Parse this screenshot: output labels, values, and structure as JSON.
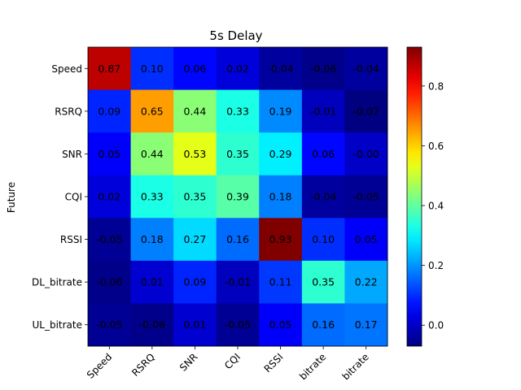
{
  "chart_data": {
    "type": "heatmap",
    "title": "5s Delay",
    "ylabel": "Future",
    "xlabel": "",
    "x_categories": [
      "Speed",
      "RSRQ",
      "SNR",
      "CQI",
      "RSSI",
      "bitrate",
      "bitrate"
    ],
    "y_categories": [
      "Speed",
      "RSRQ",
      "SNR",
      "CQI",
      "RSSI",
      "DL_bitrate",
      "UL_bitrate"
    ],
    "values": [
      [
        0.87,
        0.1,
        0.06,
        0.02,
        -0.04,
        -0.06,
        -0.04
      ],
      [
        0.09,
        0.65,
        0.44,
        0.33,
        0.19,
        -0.01,
        -0.07
      ],
      [
        0.05,
        0.44,
        0.53,
        0.35,
        0.29,
        0.06,
        -0.0
      ],
      [
        0.02,
        0.33,
        0.35,
        0.39,
        0.18,
        -0.04,
        -0.05
      ],
      [
        -0.05,
        0.18,
        0.27,
        0.16,
        0.93,
        0.1,
        0.05
      ],
      [
        -0.06,
        0.01,
        0.09,
        -0.01,
        0.11,
        0.35,
        0.22
      ],
      [
        -0.05,
        -0.06,
        0.01,
        -0.05,
        0.05,
        0.16,
        0.17
      ]
    ],
    "labels": [
      [
        "0.87",
        "0.10",
        "0.06",
        "0.02",
        "-0.04",
        "-0.06",
        "-0.04"
      ],
      [
        "0.09",
        "0.65",
        "0.44",
        "0.33",
        "0.19",
        "-0.01",
        "-0.07"
      ],
      [
        "0.05",
        "0.44",
        "0.53",
        "0.35",
        "0.29",
        "0.06",
        "-0.00"
      ],
      [
        "0.02",
        "0.33",
        "0.35",
        "0.39",
        "0.18",
        "-0.04",
        "-0.05"
      ],
      [
        "-0.05",
        "0.18",
        "0.27",
        "0.16",
        "0.93",
        "0.10",
        "0.05"
      ],
      [
        "-0.06",
        "0.01",
        "0.09",
        "-0.01",
        "0.11",
        "0.35",
        "0.22"
      ],
      [
        "-0.05",
        "-0.06",
        "0.01",
        "-0.05",
        "0.05",
        "0.16",
        "0.17"
      ]
    ],
    "colormap": "jet",
    "vmin": -0.07,
    "vmax": 0.93,
    "colorbar_ticks": [
      "0.0",
      "0.2",
      "0.4",
      "0.6",
      "0.8"
    ],
    "colorbar_tick_values": [
      0.0,
      0.2,
      0.4,
      0.6,
      0.8
    ],
    "grid": false
  }
}
